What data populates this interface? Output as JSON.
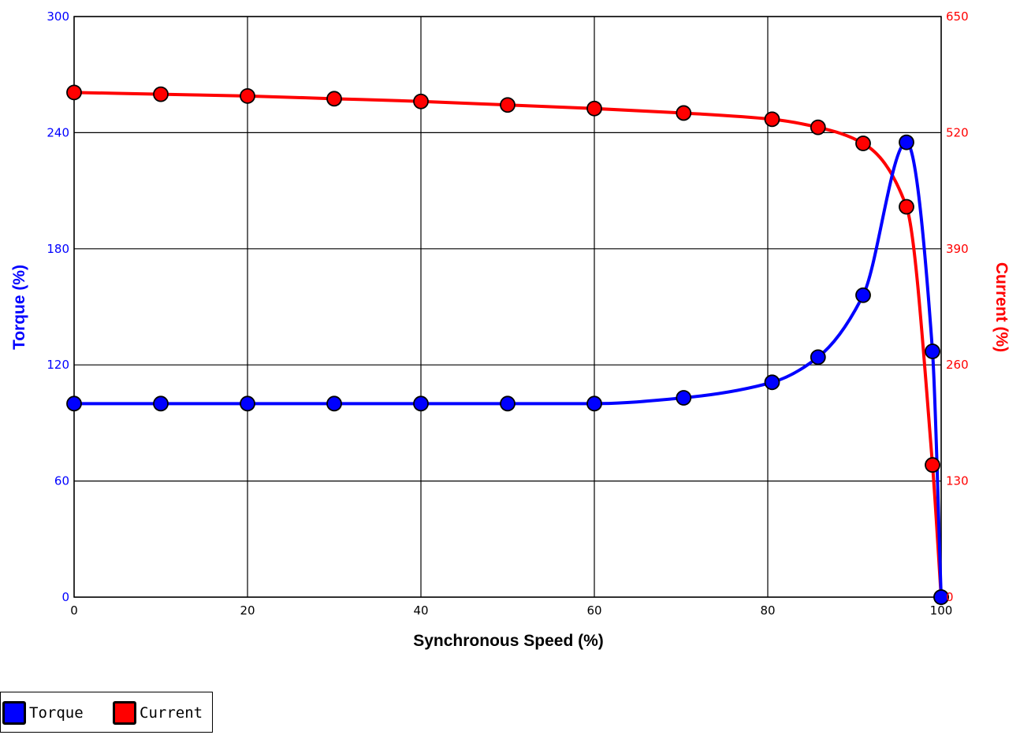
{
  "chart_data": {
    "type": "line",
    "xlabel": "Synchronous Speed (%)",
    "ylabel_left": "Torque (%)",
    "ylabel_right": "Current (%)",
    "xlim": [
      0,
      100
    ],
    "ylim_left": [
      0,
      300
    ],
    "ylim_right": [
      0,
      650
    ],
    "x_ticks": [
      0,
      20,
      40,
      60,
      80,
      100
    ],
    "y_ticks_left": [
      0,
      60,
      120,
      180,
      240,
      300
    ],
    "y_ticks_right": [
      0,
      130,
      260,
      390,
      520,
      650
    ],
    "grid": true,
    "legend_position": "bottom-left",
    "series": [
      {
        "name": "Torque",
        "axis": "left",
        "color": "#0000ff",
        "x": [
          0,
          10,
          20,
          30,
          40,
          50,
          60,
          70.3,
          80.5,
          85.8,
          91,
          96,
          99,
          100
        ],
        "y": [
          100,
          100,
          100,
          100,
          100,
          100,
          100,
          103,
          111,
          124,
          156,
          235,
          127,
          0
        ]
      },
      {
        "name": "Current",
        "axis": "right",
        "color": "#ff0000",
        "x": [
          0,
          10,
          20,
          30,
          40,
          50,
          60,
          70.3,
          80.5,
          85.8,
          91,
          96,
          99,
          100
        ],
        "y": [
          565,
          563,
          561,
          558,
          555,
          551,
          547,
          542,
          535,
          526,
          508,
          437,
          148,
          0
        ]
      }
    ]
  }
}
